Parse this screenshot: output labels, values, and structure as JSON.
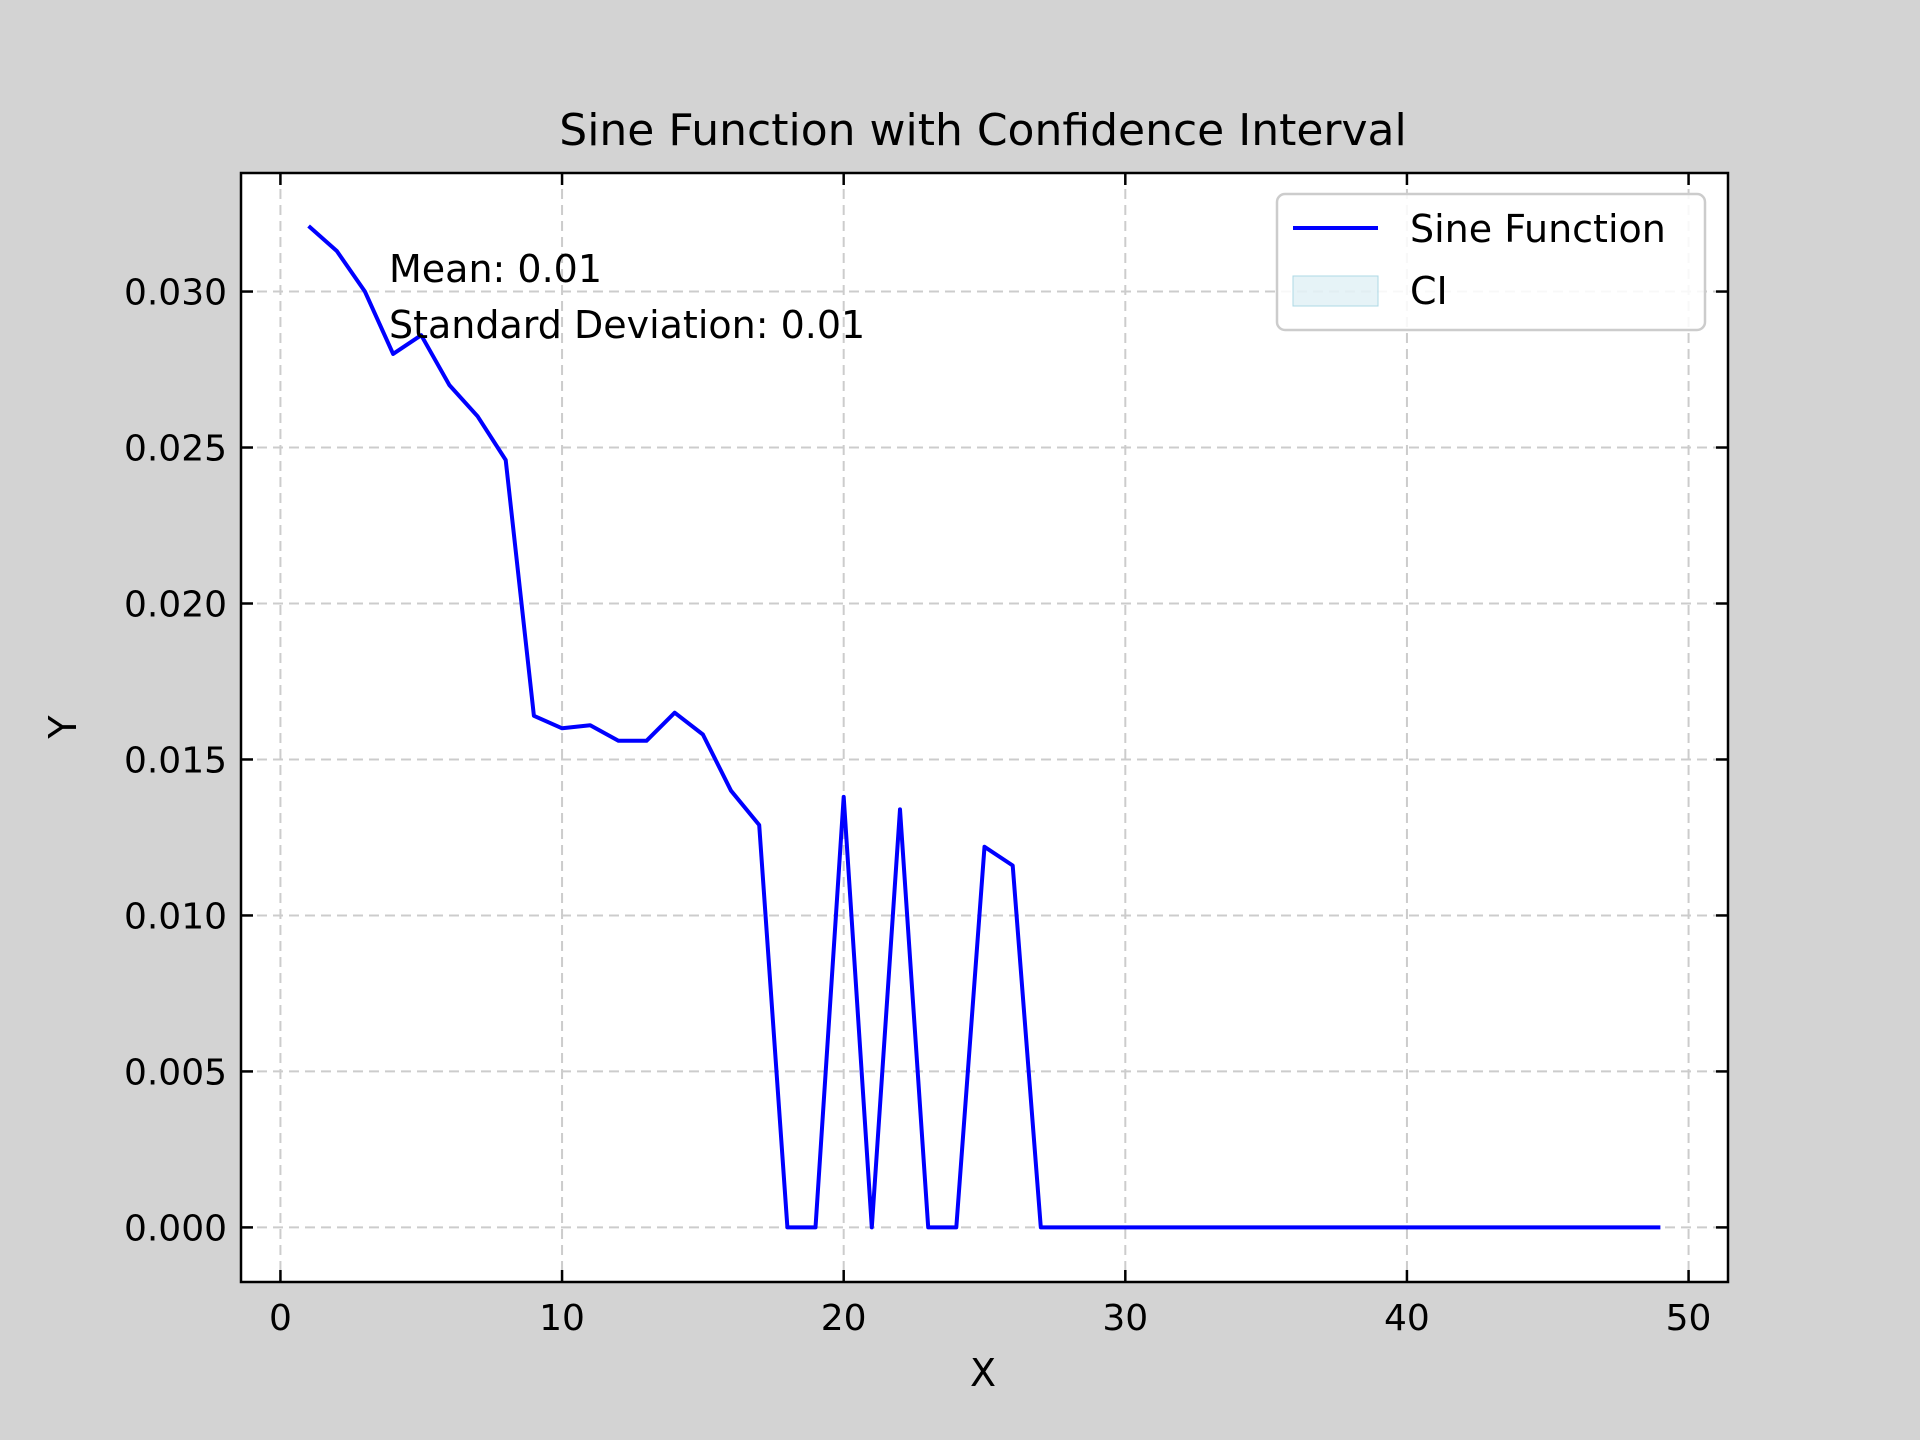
{
  "chart_data": {
    "type": "line",
    "title": "Sine Function with Confidence Interval",
    "xlabel": "X",
    "ylabel": "Y",
    "xlim": [
      -1.4,
      51.4
    ],
    "ylim": [
      -0.00175,
      0.0338
    ],
    "xticks": [
      0,
      10,
      20,
      30,
      40,
      50
    ],
    "xtick_labels": [
      "0",
      "10",
      "20",
      "30",
      "40",
      "50"
    ],
    "yticks": [
      0,
      0.005,
      0.01,
      0.015,
      0.02,
      0.025,
      0.03
    ],
    "ytick_labels": [
      "0.000",
      "0.005",
      "0.010",
      "0.015",
      "0.020",
      "0.025",
      "0.030"
    ],
    "grid": true,
    "legend_position": "top-right",
    "annotations": [
      "Mean: 0.01",
      "Standard Deviation: 0.01"
    ],
    "series": [
      {
        "name": "Sine Function",
        "color": "#0000ff",
        "x": [
          1,
          2,
          3,
          4,
          5,
          6,
          7,
          8,
          9,
          10,
          11,
          12,
          13,
          14,
          15,
          16,
          17,
          18,
          19,
          20,
          21,
          22,
          23,
          24,
          25,
          26,
          27,
          28,
          29,
          30,
          31,
          32,
          33,
          34,
          35,
          36,
          37,
          38,
          39,
          40,
          41,
          42,
          43,
          44,
          45,
          46,
          47,
          48,
          49
        ],
        "y": [
          0.0321,
          0.0313,
          0.03,
          0.028,
          0.0286,
          0.027,
          0.026,
          0.0246,
          0.0164,
          0.016,
          0.0161,
          0.0156,
          0.0156,
          0.0165,
          0.0158,
          0.014,
          0.0129,
          0.0,
          0.0,
          0.0138,
          0.0,
          0.0134,
          0.0,
          0.0,
          0.0122,
          0.0116,
          0.0,
          0,
          0,
          0,
          0,
          0,
          0,
          0,
          0,
          0,
          0,
          0,
          0,
          0,
          0,
          0,
          0,
          0,
          0,
          0,
          0,
          0,
          0
        ]
      }
    ],
    "ci": {
      "name": "CI",
      "color": "#add8e6"
    }
  }
}
